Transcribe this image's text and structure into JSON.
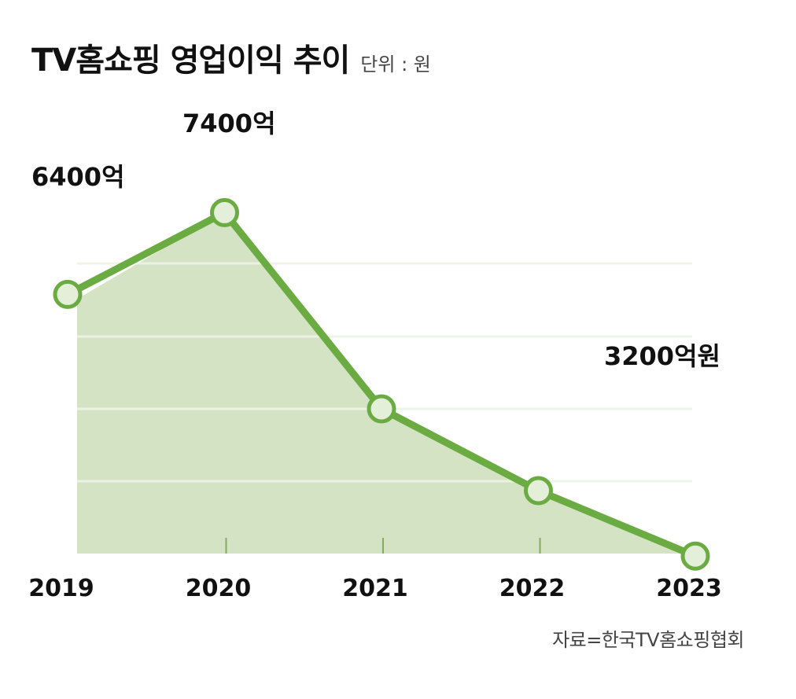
{
  "header": {
    "title": "TV홈쇼핑 영업이익 추이",
    "unit": "단위 : 원"
  },
  "source": "자료=한국TV홈쇼핑협회",
  "chart_data": {
    "type": "area",
    "title": "TV홈쇼핑 영업이익 추이",
    "ylabel_unit": "단위 : 원",
    "categories": [
      "2019",
      "2020",
      "2021",
      "2022",
      "2023"
    ],
    "values": [
      6400,
      7400,
      5000,
      4000,
      3200
    ],
    "value_unit": "억원",
    "data_labels": [
      {
        "index": 0,
        "text": "6400억"
      },
      {
        "index": 1,
        "text": "7400억"
      },
      {
        "index": 4,
        "text": "3200억원"
      }
    ],
    "ylim": [
      0,
      10000
    ],
    "grid": true,
    "colors": {
      "line": "#6aab42",
      "area": "#d4e3c4",
      "marker_fill": "#e4efd9",
      "grid": "#eef4e8"
    }
  }
}
